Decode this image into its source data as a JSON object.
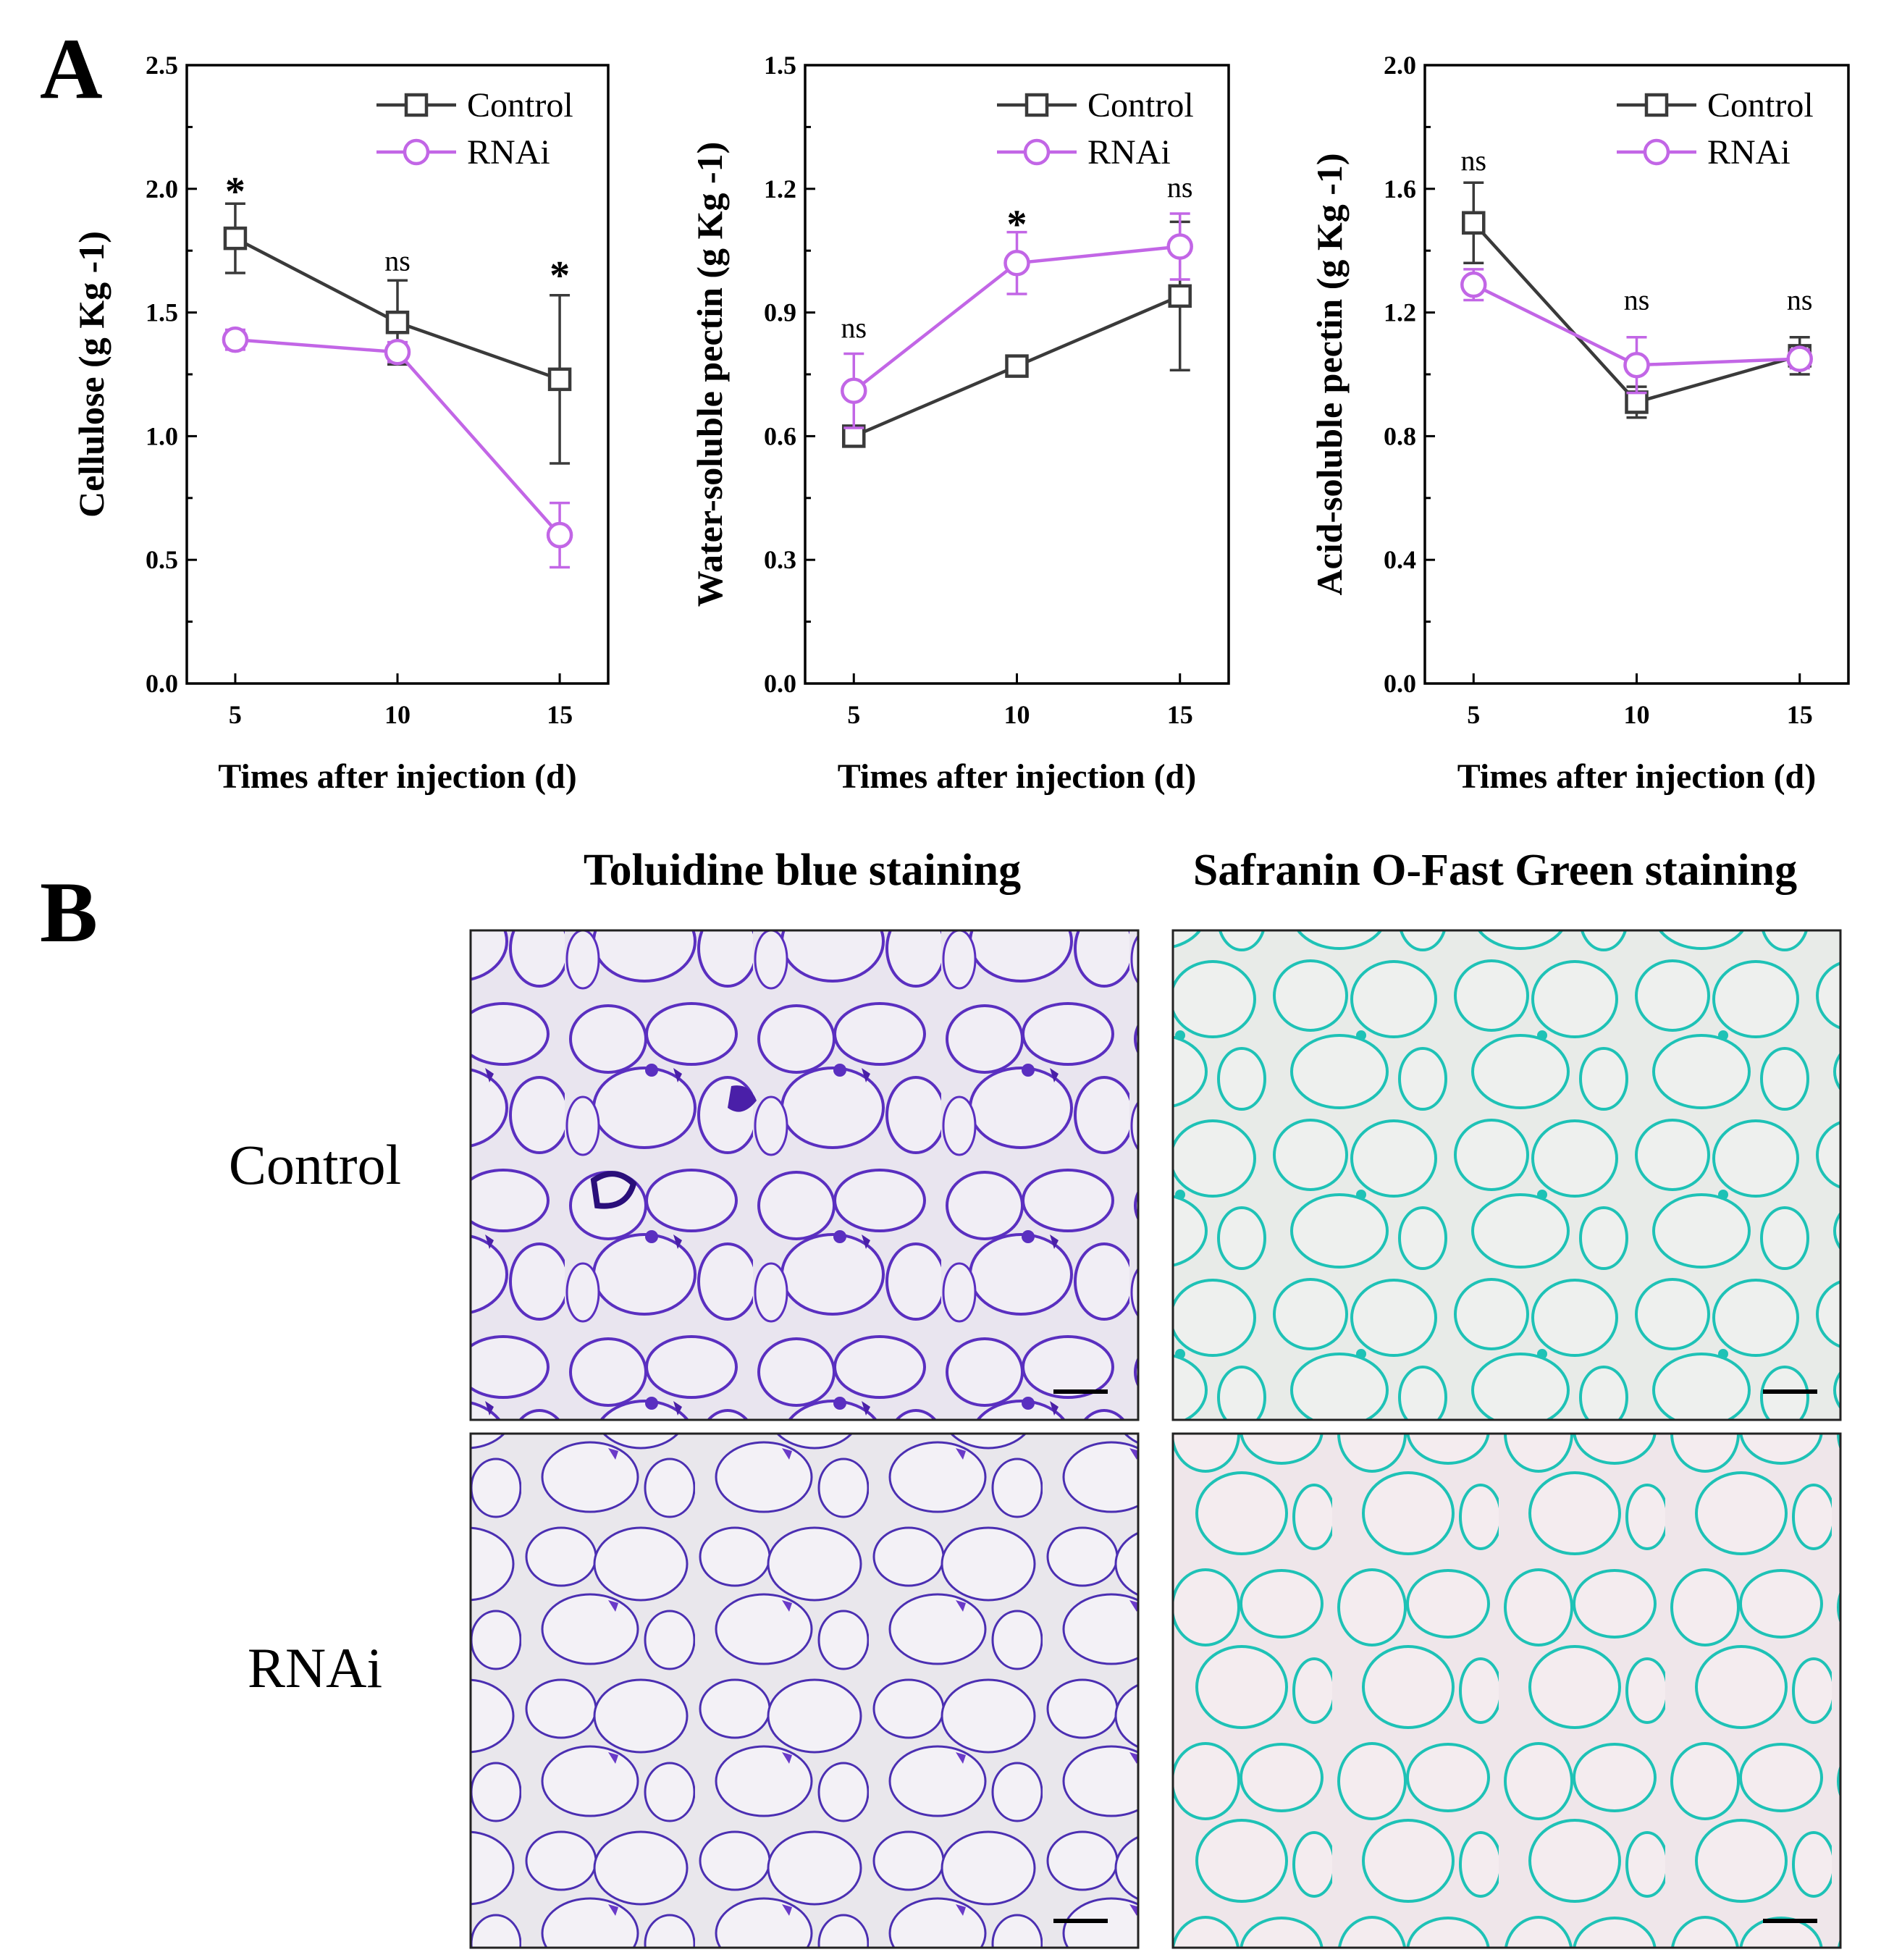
{
  "panel_a_label": "A",
  "panel_b_label": "B",
  "colors": {
    "control": "#3a3a3a",
    "rnai": "#c266e6",
    "toluidine_bg": "#e8e4ee",
    "toluidine_wall": "#5a2fc0",
    "safranin_bg": "#e9ece9",
    "safranin_wall": "#1ec2b6"
  },
  "chart_data": [
    {
      "type": "line",
      "title": "",
      "xlabel": "Times after injection (d)",
      "ylabel": "Cellulose (g Kg -1)",
      "x": [
        5,
        10,
        15
      ],
      "xticks": [
        "5",
        "10",
        "15"
      ],
      "ylim": [
        0,
        2.5
      ],
      "yticks": [
        "0.0",
        "0.5",
        "1.0",
        "1.5",
        "2.0",
        "2.5"
      ],
      "legend": [
        "Control",
        "RNAi"
      ],
      "legend_position": "top-right",
      "series": [
        {
          "name": "Control",
          "values": [
            1.8,
            1.46,
            1.23
          ],
          "errors": [
            0.14,
            0.17,
            0.34
          ],
          "marker": "square"
        },
        {
          "name": "RNAi",
          "values": [
            1.39,
            1.34,
            0.6
          ],
          "errors": [
            0.04,
            0.04,
            0.13
          ],
          "marker": "circle"
        }
      ],
      "annotations": [
        "*",
        "ns",
        "*"
      ],
      "annotation_values": [
        2.0,
        1.67,
        1.66
      ]
    },
    {
      "type": "line",
      "title": "",
      "xlabel": "Times after injection (d)",
      "ylabel": "Water-soluble pectin (g Kg -1)",
      "x": [
        5,
        10,
        15
      ],
      "xticks": [
        "5",
        "10",
        "15"
      ],
      "ylim": [
        0,
        1.5
      ],
      "yticks": [
        "0.0",
        "0.3",
        "0.6",
        "0.9",
        "1.2",
        "1.5"
      ],
      "legend": [
        "Control",
        "RNAi"
      ],
      "legend_position": "top-right",
      "series": [
        {
          "name": "Control",
          "values": [
            0.6,
            0.77,
            0.94
          ],
          "errors": [
            0.015,
            0.015,
            0.18
          ],
          "marker": "square"
        },
        {
          "name": "RNAi",
          "values": [
            0.71,
            1.02,
            1.06
          ],
          "errors": [
            0.09,
            0.075,
            0.08
          ],
          "marker": "circle"
        }
      ],
      "annotations": [
        "ns",
        "*",
        "ns"
      ],
      "annotation_values": [
        0.84,
        1.12,
        1.18
      ]
    },
    {
      "type": "line",
      "title": "",
      "xlabel": "Times after injection (d)",
      "ylabel": "Acid-soluble pectin (g Kg -1)",
      "x": [
        5,
        10,
        15
      ],
      "xticks": [
        "5",
        "10",
        "15"
      ],
      "ylim": [
        0,
        2.0
      ],
      "yticks": [
        "0.0",
        "0.4",
        "0.8",
        "1.2",
        "1.6",
        "2.0"
      ],
      "legend": [
        "Control",
        "RNAi"
      ],
      "legend_position": "top-right",
      "series": [
        {
          "name": "Control",
          "values": [
            1.49,
            0.91,
            1.06
          ],
          "errors": [
            0.13,
            0.05,
            0.06
          ],
          "marker": "square"
        },
        {
          "name": "RNAi",
          "values": [
            1.29,
            1.03,
            1.05
          ],
          "errors": [
            0.05,
            0.09,
            0.03
          ],
          "marker": "circle"
        }
      ],
      "annotations": [
        "ns",
        "ns",
        "ns"
      ],
      "annotation_values": [
        1.66,
        1.21,
        1.21
      ]
    }
  ],
  "panel_b": {
    "column_headers": [
      "Toluidine blue staining",
      "Safranin O-Fast Green staining"
    ],
    "row_labels": [
      "Control",
      "RNAi"
    ],
    "micrographs": [
      "toluidine-control",
      "safranin-control",
      "toluidine-rnai",
      "safranin-rnai"
    ]
  }
}
